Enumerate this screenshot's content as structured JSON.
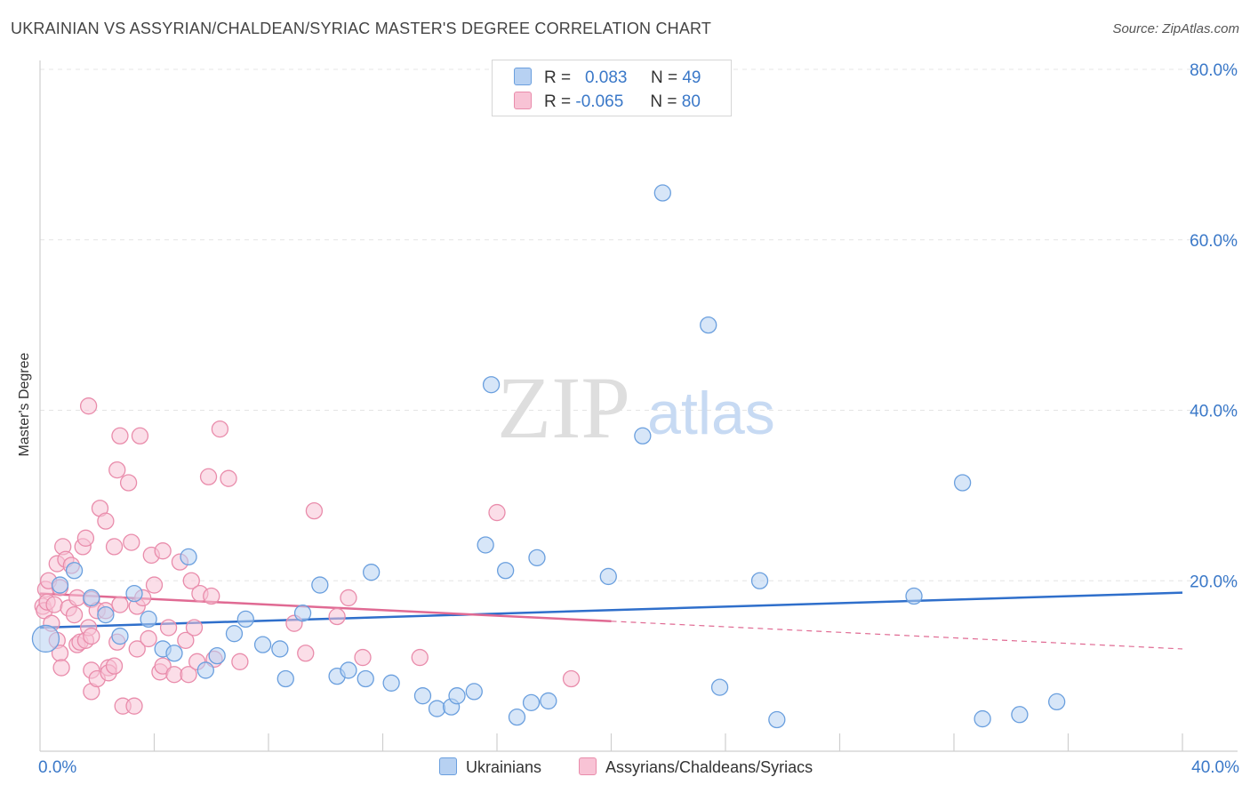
{
  "title": "UKRAINIAN VS ASSYRIAN/CHALDEAN/SYRIAC MASTER'S DEGREE CORRELATION CHART",
  "source": "Source: ZipAtlas.com",
  "watermark": {
    "zip": "ZIP",
    "atlas": "atlas"
  },
  "legend": {
    "r_label": "R =",
    "n_label": "N =",
    "rows": [
      {
        "r": "0.083",
        "n": "49"
      },
      {
        "r": "-0.065",
        "n": "80"
      }
    ]
  },
  "colors": {
    "blue_fill": "#b7d1f2",
    "blue_stroke": "#6a9fde",
    "blue_line": "#2f6fcb",
    "pink_fill": "#f8c3d5",
    "pink_stroke": "#e98cab",
    "pink_line": "#e06a93",
    "tick_label": "#3a78c8"
  },
  "chart_data": {
    "type": "scatter",
    "title": "UKRAINIAN VS ASSYRIAN/CHALDEAN/SYRIAC MASTER'S DEGREE CORRELATION CHART",
    "xlabel": "",
    "ylabel": "Master's Degree",
    "xlim": [
      0,
      40
    ],
    "ylim": [
      0,
      80
    ],
    "x_tick_labels": [
      "0.0%",
      "40.0%"
    ],
    "y_ticks": [
      20,
      40,
      60,
      80
    ],
    "y_tick_labels": [
      "20.0%",
      "40.0%",
      "60.0%",
      "80.0%"
    ],
    "grid": true,
    "series": [
      {
        "name": "Ukrainians",
        "r": 0.083,
        "n": 49,
        "trend": {
          "x": [
            0,
            40
          ],
          "y": [
            14.5,
            18.6
          ],
          "dashed_from": null
        },
        "points": [
          [
            0.2,
            13.2
          ],
          [
            0.7,
            19.5
          ],
          [
            1.2,
            21.2
          ],
          [
            1.8,
            18.0
          ],
          [
            2.3,
            16.0
          ],
          [
            2.8,
            13.5
          ],
          [
            3.3,
            18.5
          ],
          [
            3.8,
            15.5
          ],
          [
            4.3,
            12.0
          ],
          [
            4.7,
            11.5
          ],
          [
            5.2,
            22.8
          ],
          [
            5.8,
            9.5
          ],
          [
            6.2,
            11.2
          ],
          [
            6.8,
            13.8
          ],
          [
            7.2,
            15.5
          ],
          [
            7.8,
            12.5
          ],
          [
            8.4,
            12.0
          ],
          [
            8.6,
            8.5
          ],
          [
            9.2,
            16.2
          ],
          [
            9.8,
            19.5
          ],
          [
            10.4,
            8.8
          ],
          [
            10.8,
            9.5
          ],
          [
            11.4,
            8.5
          ],
          [
            11.6,
            21.0
          ],
          [
            12.3,
            8.0
          ],
          [
            13.4,
            6.5
          ],
          [
            13.9,
            5.0
          ],
          [
            14.4,
            5.2
          ],
          [
            14.6,
            6.5
          ],
          [
            15.2,
            7.0
          ],
          [
            15.6,
            24.2
          ],
          [
            15.8,
            43.0
          ],
          [
            16.3,
            21.2
          ],
          [
            16.7,
            4.0
          ],
          [
            17.2,
            5.7
          ],
          [
            17.4,
            22.7
          ],
          [
            17.8,
            5.9
          ],
          [
            19.9,
            20.5
          ],
          [
            21.1,
            37.0
          ],
          [
            21.8,
            65.5
          ],
          [
            23.4,
            50.0
          ],
          [
            23.8,
            7.5
          ],
          [
            25.2,
            20.0
          ],
          [
            25.8,
            3.7
          ],
          [
            30.6,
            18.2
          ],
          [
            32.3,
            31.5
          ],
          [
            33.0,
            3.8
          ],
          [
            34.3,
            4.3
          ],
          [
            35.6,
            5.8
          ]
        ]
      },
      {
        "name": "Assyrians/Chaldeans/Syriacs",
        "r": -0.065,
        "n": 80,
        "trend": {
          "x": [
            0,
            40
          ],
          "y": [
            18.5,
            12.0
          ],
          "dashed_from": 20
        },
        "points": [
          [
            0.1,
            17.0
          ],
          [
            0.15,
            16.5
          ],
          [
            0.2,
            19.0
          ],
          [
            0.25,
            17.5
          ],
          [
            0.3,
            20.0
          ],
          [
            0.4,
            15.0
          ],
          [
            0.5,
            17.2
          ],
          [
            0.6,
            22.0
          ],
          [
            0.6,
            13.0
          ],
          [
            0.7,
            19.2
          ],
          [
            0.7,
            11.5
          ],
          [
            0.75,
            9.8
          ],
          [
            0.8,
            24.0
          ],
          [
            0.9,
            22.5
          ],
          [
            1.0,
            16.8
          ],
          [
            1.1,
            21.8
          ],
          [
            1.2,
            16.0
          ],
          [
            1.3,
            18.0
          ],
          [
            1.3,
            12.5
          ],
          [
            1.4,
            12.8
          ],
          [
            1.5,
            24.0
          ],
          [
            1.6,
            25.0
          ],
          [
            1.6,
            13.0
          ],
          [
            1.7,
            14.5
          ],
          [
            1.8,
            17.8
          ],
          [
            1.8,
            13.5
          ],
          [
            1.8,
            9.5
          ],
          [
            1.7,
            40.5
          ],
          [
            1.8,
            7.0
          ],
          [
            2.0,
            16.5
          ],
          [
            2.0,
            8.5
          ],
          [
            2.1,
            28.5
          ],
          [
            2.3,
            27.0
          ],
          [
            2.3,
            16.5
          ],
          [
            2.4,
            9.8
          ],
          [
            2.4,
            9.2
          ],
          [
            2.6,
            24.0
          ],
          [
            2.6,
            10.0
          ],
          [
            2.7,
            33.0
          ],
          [
            2.7,
            12.8
          ],
          [
            2.8,
            37.0
          ],
          [
            2.8,
            17.2
          ],
          [
            2.9,
            5.3
          ],
          [
            3.1,
            31.5
          ],
          [
            3.2,
            24.5
          ],
          [
            3.3,
            5.3
          ],
          [
            3.4,
            17.0
          ],
          [
            3.4,
            12.0
          ],
          [
            3.5,
            37.0
          ],
          [
            3.6,
            18.0
          ],
          [
            3.8,
            13.2
          ],
          [
            3.9,
            23.0
          ],
          [
            4.0,
            19.5
          ],
          [
            4.2,
            9.3
          ],
          [
            4.3,
            23.5
          ],
          [
            4.3,
            10.0
          ],
          [
            4.5,
            14.5
          ],
          [
            4.7,
            9.0
          ],
          [
            4.9,
            22.2
          ],
          [
            5.1,
            13.0
          ],
          [
            5.2,
            9.0
          ],
          [
            5.3,
            20.0
          ],
          [
            5.4,
            14.5
          ],
          [
            5.5,
            10.5
          ],
          [
            5.6,
            18.5
          ],
          [
            5.9,
            32.2
          ],
          [
            6.0,
            18.2
          ],
          [
            6.1,
            10.8
          ],
          [
            6.3,
            37.8
          ],
          [
            6.6,
            32.0
          ],
          [
            7.0,
            10.5
          ],
          [
            8.9,
            15.0
          ],
          [
            9.3,
            11.5
          ],
          [
            9.6,
            28.2
          ],
          [
            10.4,
            15.8
          ],
          [
            10.8,
            18.0
          ],
          [
            11.3,
            11.0
          ],
          [
            18.6,
            8.5
          ],
          [
            16.0,
            28.0
          ],
          [
            13.3,
            11.0
          ]
        ]
      }
    ]
  }
}
